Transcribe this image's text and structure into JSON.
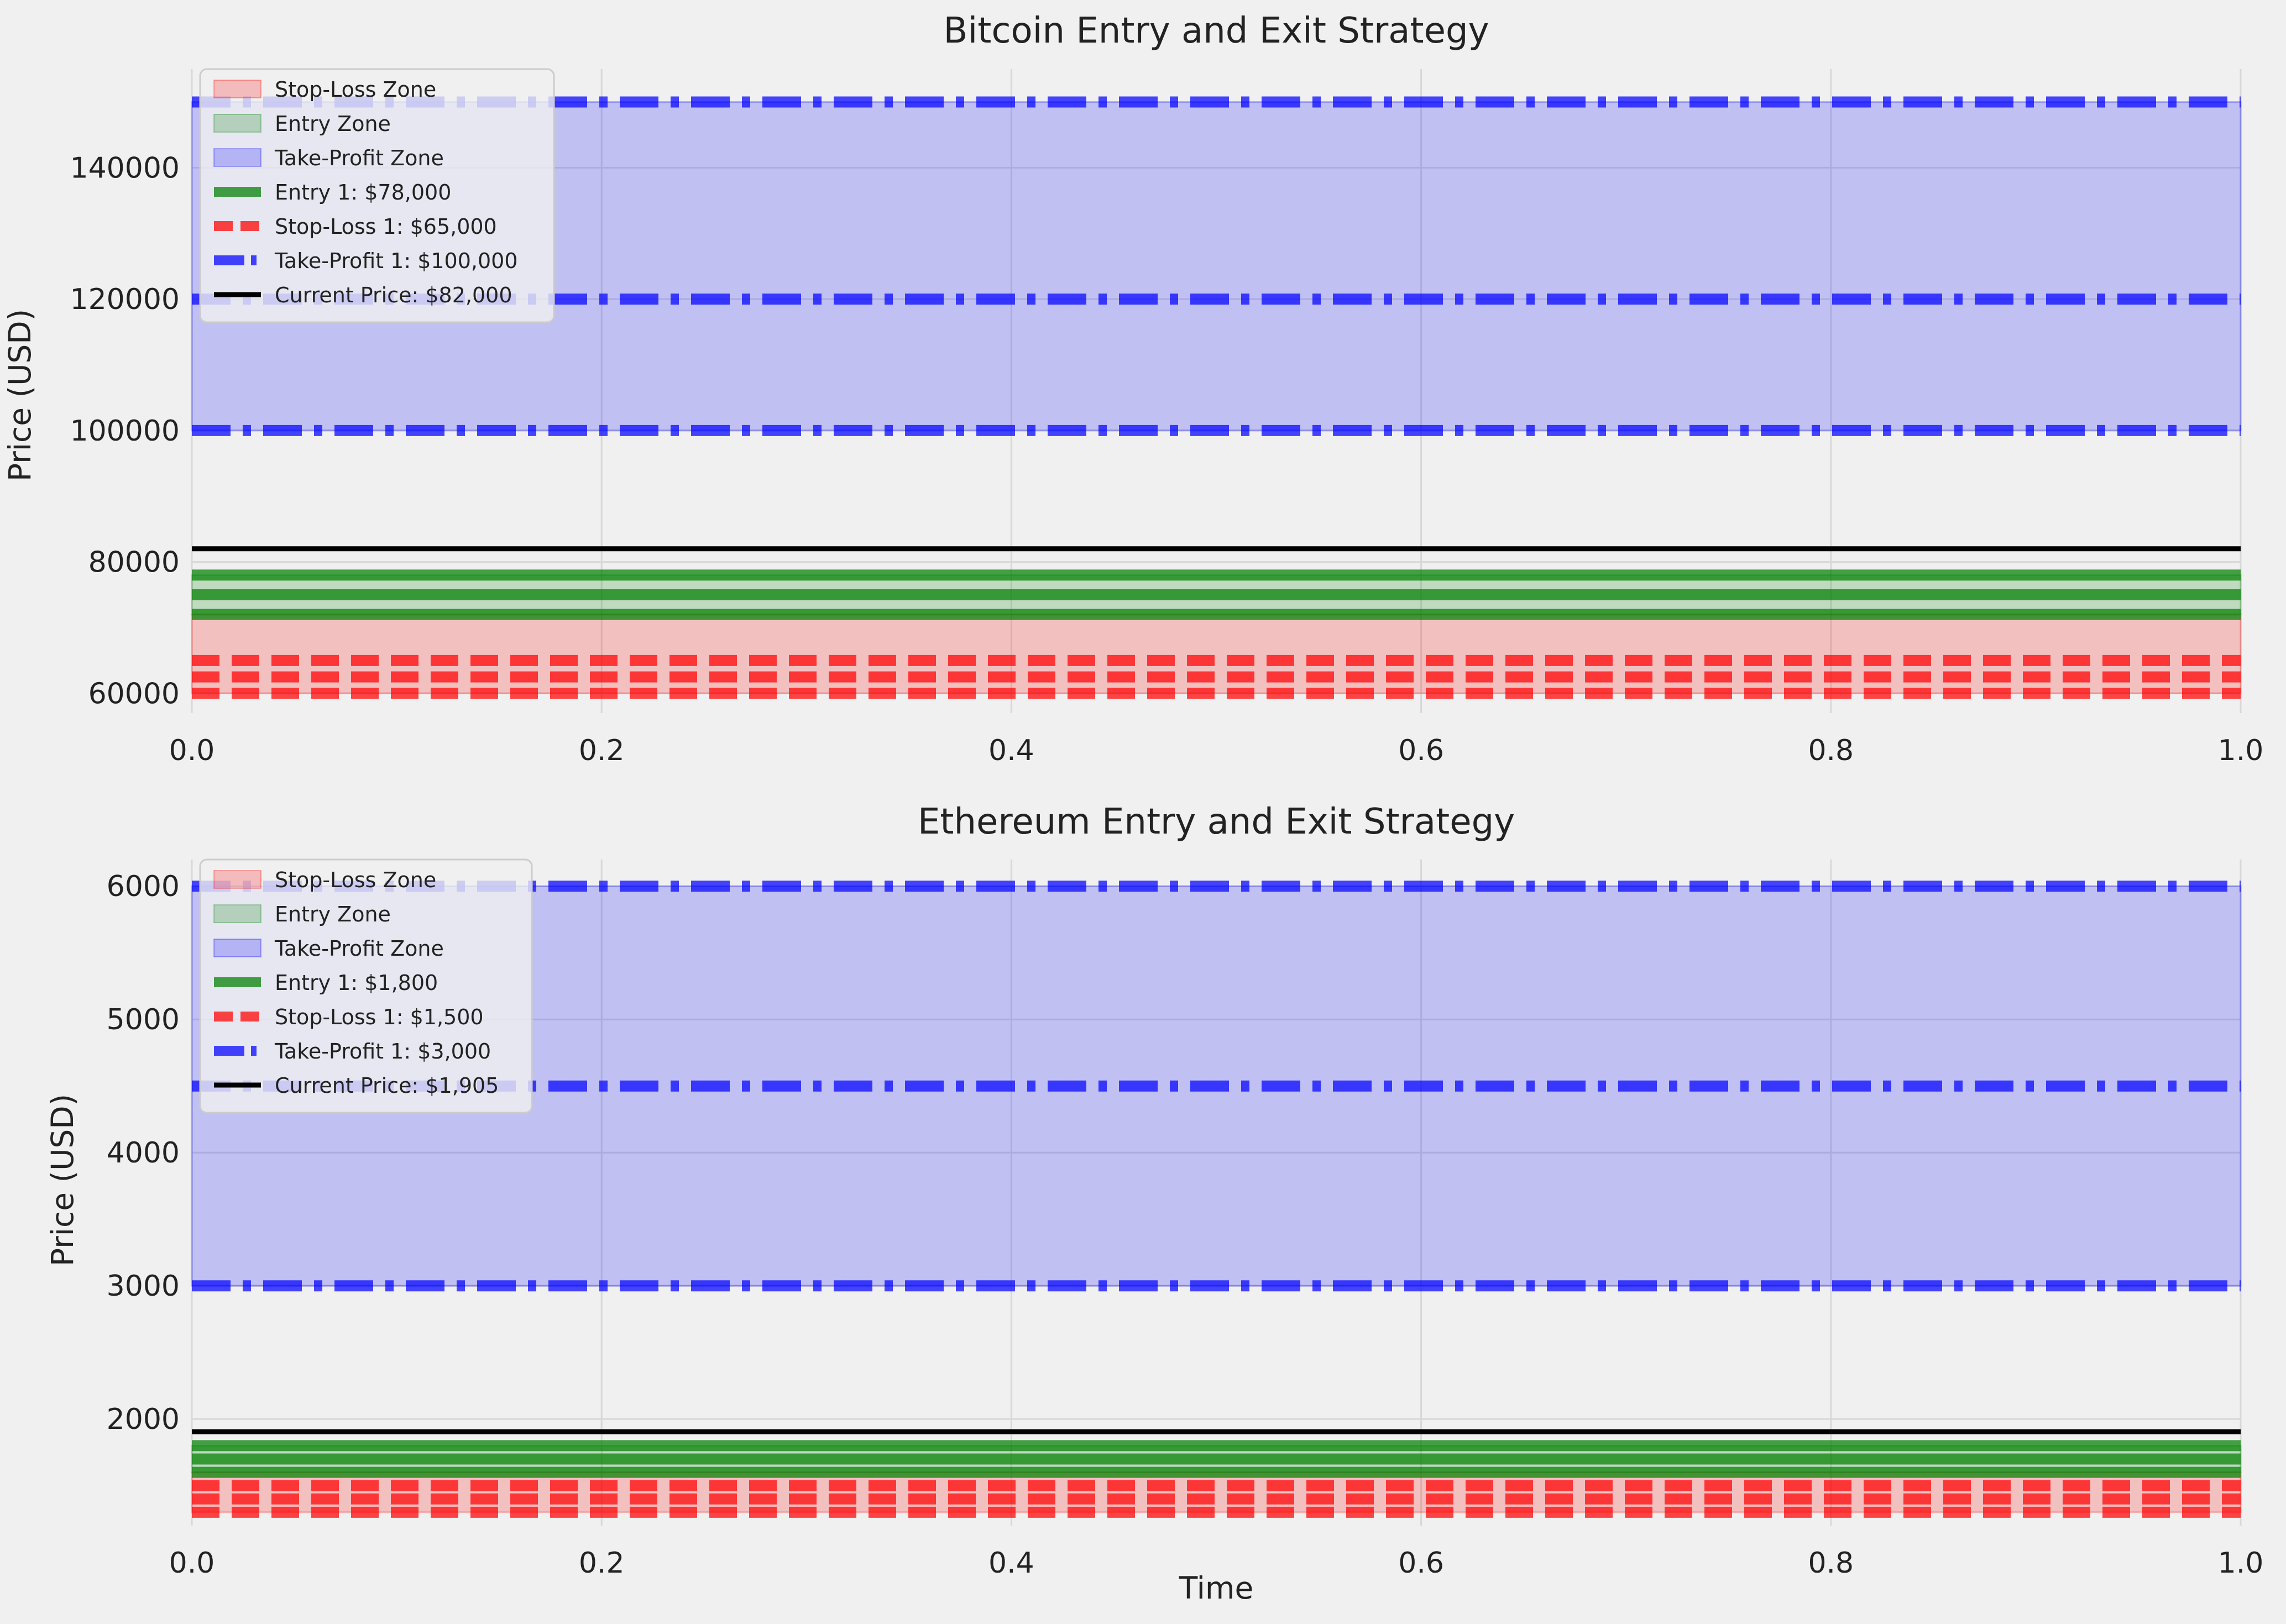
{
  "figure": {
    "background": "#f0f0f0",
    "colors": {
      "stop_loss": "#ff0000",
      "entry": "#008000",
      "take_profit": "#0000ff",
      "current": "#000000"
    }
  },
  "chart_data": [
    {
      "type": "line",
      "title": "Bitcoin Entry and Exit Strategy",
      "xlabel": "",
      "ylabel": "Price (USD)",
      "xlim": [
        0,
        1
      ],
      "ylim": [
        57000,
        155000
      ],
      "x_ticks": [
        0.0,
        0.2,
        0.4,
        0.6,
        0.8,
        1.0
      ],
      "x_tick_labels": [
        "0.0",
        "0.2",
        "0.4",
        "0.6",
        "0.8",
        "1.0"
      ],
      "y_ticks": [
        60000,
        80000,
        100000,
        120000,
        140000
      ],
      "y_tick_labels": [
        "60000",
        "80000",
        "100000",
        "120000",
        "140000"
      ],
      "grid": true,
      "legend_placement": "upper-left",
      "zones": [
        {
          "name": "Stop-Loss Zone",
          "from": 60000,
          "to": 72000,
          "color": "#ff0000",
          "alpha": 0.2
        },
        {
          "name": "Entry Zone",
          "from": 72000,
          "to": 78000,
          "color": "#008000",
          "alpha": 0.2
        },
        {
          "name": "Take-Profit Zone",
          "from": 100000,
          "to": 150000,
          "color": "#0000ff",
          "alpha": 0.2
        }
      ],
      "levels": {
        "entry": [
          78000,
          75000,
          72000
        ],
        "stop_loss": [
          65000,
          62500,
          60000
        ],
        "take_profit": [
          100000,
          120000,
          150000
        ],
        "current": 82000
      },
      "legend": [
        {
          "label": "Stop-Loss Zone",
          "kind": "patch",
          "color": "#ff0000"
        },
        {
          "label": "Entry Zone",
          "kind": "patch",
          "color": "#008000"
        },
        {
          "label": "Take-Profit Zone",
          "kind": "patch",
          "color": "#0000ff"
        },
        {
          "label": "Entry 1: $78,000",
          "kind": "solid",
          "color": "#008000"
        },
        {
          "label": "Stop-Loss 1: $65,000",
          "kind": "dashed",
          "color": "#ff0000"
        },
        {
          "label": "Take-Profit 1: $100,000",
          "kind": "dashdot",
          "color": "#0000ff"
        },
        {
          "label": "Current Price: $82,000",
          "kind": "current",
          "color": "#000000"
        }
      ]
    },
    {
      "type": "line",
      "title": "Ethereum Entry and Exit Strategy",
      "xlabel": "Time",
      "ylabel": "Price (USD)",
      "xlim": [
        0,
        1
      ],
      "ylim": [
        1200,
        6200
      ],
      "x_ticks": [
        0.0,
        0.2,
        0.4,
        0.6,
        0.8,
        1.0
      ],
      "x_tick_labels": [
        "0.0",
        "0.2",
        "0.4",
        "0.6",
        "0.8",
        "1.0"
      ],
      "y_ticks": [
        2000,
        3000,
        4000,
        5000,
        6000
      ],
      "y_tick_labels": [
        "2000",
        "3000",
        "4000",
        "5000",
        "6000"
      ],
      "grid": true,
      "legend_placement": "upper-left",
      "zones": [
        {
          "name": "Stop-Loss Zone",
          "from": 1300,
          "to": 1600,
          "color": "#ff0000",
          "alpha": 0.2
        },
        {
          "name": "Entry Zone",
          "from": 1600,
          "to": 1800,
          "color": "#008000",
          "alpha": 0.2
        },
        {
          "name": "Take-Profit Zone",
          "from": 3000,
          "to": 6000,
          "color": "#0000ff",
          "alpha": 0.2
        }
      ],
      "levels": {
        "entry": [
          1800,
          1700,
          1600
        ],
        "stop_loss": [
          1500,
          1400,
          1300
        ],
        "take_profit": [
          3000,
          4500,
          6000
        ],
        "current": 1905
      },
      "legend": [
        {
          "label": "Stop-Loss Zone",
          "kind": "patch",
          "color": "#ff0000"
        },
        {
          "label": "Entry Zone",
          "kind": "patch",
          "color": "#008000"
        },
        {
          "label": "Take-Profit Zone",
          "kind": "patch",
          "color": "#0000ff"
        },
        {
          "label": "Entry 1: $1,800",
          "kind": "solid",
          "color": "#008000"
        },
        {
          "label": "Stop-Loss 1: $1,500",
          "kind": "dashed",
          "color": "#ff0000"
        },
        {
          "label": "Take-Profit 1: $3,000",
          "kind": "dashdot",
          "color": "#0000ff"
        },
        {
          "label": "Current Price: $1,905",
          "kind": "current",
          "color": "#000000"
        }
      ]
    }
  ]
}
